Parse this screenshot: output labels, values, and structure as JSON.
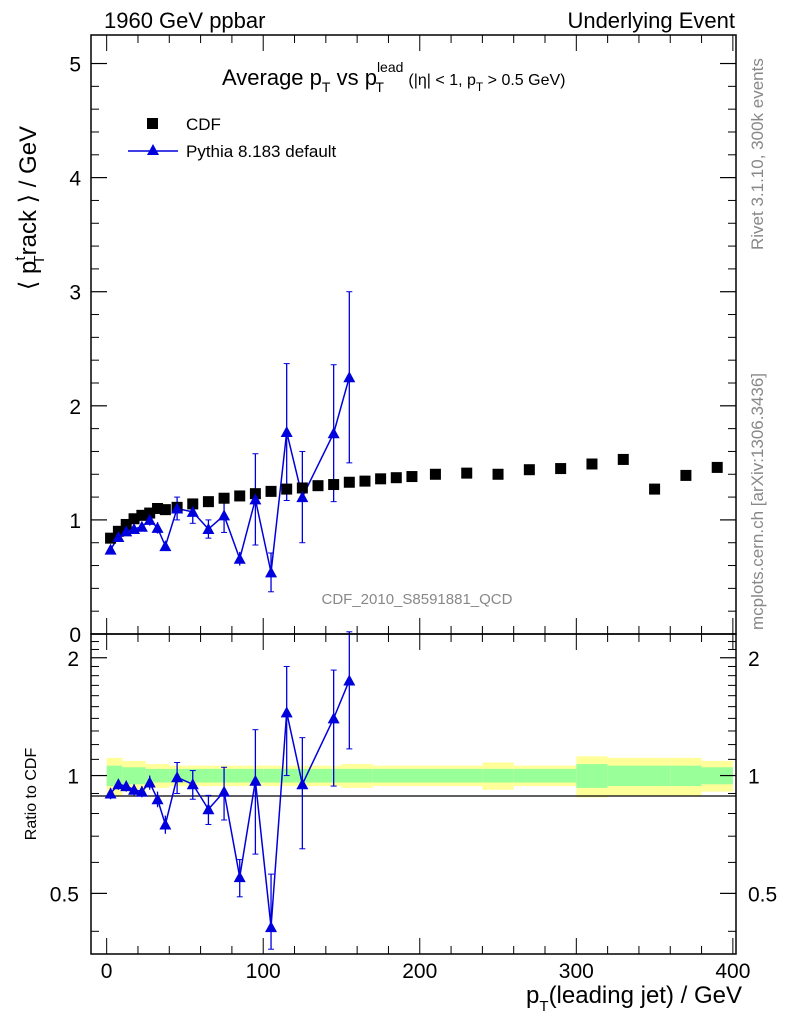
{
  "header": {
    "left": "1960 GeV ppbar",
    "right": "Underlying Event"
  },
  "side": {
    "rivet": "Rivet 3.1.10,  300k events",
    "mcplots": "mcplots.cern.ch [arXiv:1306.3436]"
  },
  "chart_data": [
    {
      "type": "scatter",
      "title": "Average pT vs pTlead (|η| < 1, pT > 0.5 GeV)",
      "title_parts": {
        "a": "Average p",
        "a_sub": "T",
        "b": " vs p",
        "b_sup": "lead",
        "b_sub": "T",
        "c": " (|η| < 1, p",
        "c_sub": "T",
        "d": " > 0.5 GeV)"
      },
      "watermark": "CDF_2010_S8591881_QCD",
      "ylabel": "⟨ ptrack ⟩ / GeV",
      "ylabel_parts": {
        "open": "⟨ p",
        "sup": "t",
        "sub": "T",
        "rest": "rack ⟩ / GeV"
      },
      "xlim": [
        -10,
        402
      ],
      "ylim": [
        0,
        5.25
      ],
      "y_ticks": [
        0,
        1,
        2,
        3,
        4,
        5
      ],
      "legend_position": "top-left",
      "series": [
        {
          "name": "CDF",
          "marker": "square",
          "color": "#000000",
          "x": [
            2.5,
            7.5,
            12.5,
            17.5,
            22.5,
            27.5,
            32.5,
            37.5,
            45,
            55,
            65,
            75,
            85,
            95,
            105,
            115,
            125,
            135,
            145,
            155,
            165,
            175,
            185,
            195,
            210,
            230,
            250,
            270,
            290,
            310,
            330,
            350,
            370,
            390
          ],
          "y": [
            0.84,
            0.9,
            0.96,
            1.01,
            1.04,
            1.06,
            1.1,
            1.09,
            1.11,
            1.14,
            1.16,
            1.19,
            1.21,
            1.23,
            1.25,
            1.27,
            1.28,
            1.3,
            1.31,
            1.33,
            1.34,
            1.36,
            1.37,
            1.38,
            1.4,
            1.41,
            1.4,
            1.44,
            1.45,
            1.49,
            1.53,
            1.27,
            1.39,
            1.46
          ]
        },
        {
          "name": "Pythia 8.183 default",
          "marker": "triangle",
          "color": "#0000dd",
          "x": [
            2.5,
            7.5,
            12.5,
            17.5,
            22.5,
            27.5,
            32.5,
            37.5,
            45,
            55,
            65,
            75,
            85,
            95,
            105,
            115,
            125,
            145,
            155
          ],
          "y": [
            0.74,
            0.85,
            0.9,
            0.92,
            0.94,
            1.0,
            0.93,
            0.77,
            1.1,
            1.07,
            0.92,
            1.04,
            0.66,
            1.18,
            0.54,
            1.77,
            1.2,
            1.76,
            2.25
          ],
          "yerr": [
            0.04,
            0.03,
            0.03,
            0.03,
            0.03,
            0.05,
            0.05,
            0.04,
            0.1,
            0.1,
            0.08,
            0.15,
            0.06,
            0.4,
            0.17,
            0.6,
            0.4,
            0.6,
            0.75
          ]
        }
      ]
    },
    {
      "type": "scatter",
      "ylabel": "Ratio to CDF",
      "xlabel": "pT(leading jet) / GeV",
      "xlabel_parts": {
        "p": "p",
        "sub": "T",
        "rest": "(leading jet) / GeV"
      },
      "xlim": [
        -10,
        402
      ],
      "ylim": [
        0.35,
        2.3
      ],
      "y_ticks": [
        0.5,
        1,
        2
      ],
      "x_ticks": [
        0,
        100,
        200,
        300,
        400
      ],
      "band_bins": [
        0,
        10,
        25,
        40,
        100,
        150,
        170,
        240,
        260,
        300,
        320,
        360,
        380,
        400
      ],
      "band_inner": [
        0.06,
        0.05,
        0.04,
        0.04,
        0.04,
        0.04,
        0.04,
        0.04,
        0.04,
        0.07,
        0.06,
        0.06,
        0.05,
        0.2
      ],
      "band_outer": [
        0.11,
        0.09,
        0.07,
        0.06,
        0.06,
        0.07,
        0.06,
        0.08,
        0.06,
        0.12,
        0.11,
        0.11,
        0.09,
        0.32
      ],
      "series": [
        {
          "name": "Pythia 8.183 default",
          "marker": "triangle",
          "color": "#0000dd",
          "x": [
            2.5,
            7.5,
            12.5,
            17.5,
            22.5,
            27.5,
            32.5,
            37.5,
            45,
            55,
            65,
            75,
            85,
            95,
            105,
            115,
            125,
            145,
            155
          ],
          "y": [
            0.9,
            0.95,
            0.94,
            0.92,
            0.91,
            0.96,
            0.87,
            0.75,
            0.99,
            0.95,
            0.82,
            0.91,
            0.55,
            0.97,
            0.41,
            1.45,
            0.95,
            1.4,
            1.75
          ],
          "yerr": [
            0.03,
            0.03,
            0.03,
            0.03,
            0.03,
            0.04,
            0.04,
            0.04,
            0.09,
            0.08,
            0.07,
            0.14,
            0.06,
            0.34,
            0.15,
            0.45,
            0.3,
            0.46,
            0.58
          ]
        }
      ]
    }
  ]
}
